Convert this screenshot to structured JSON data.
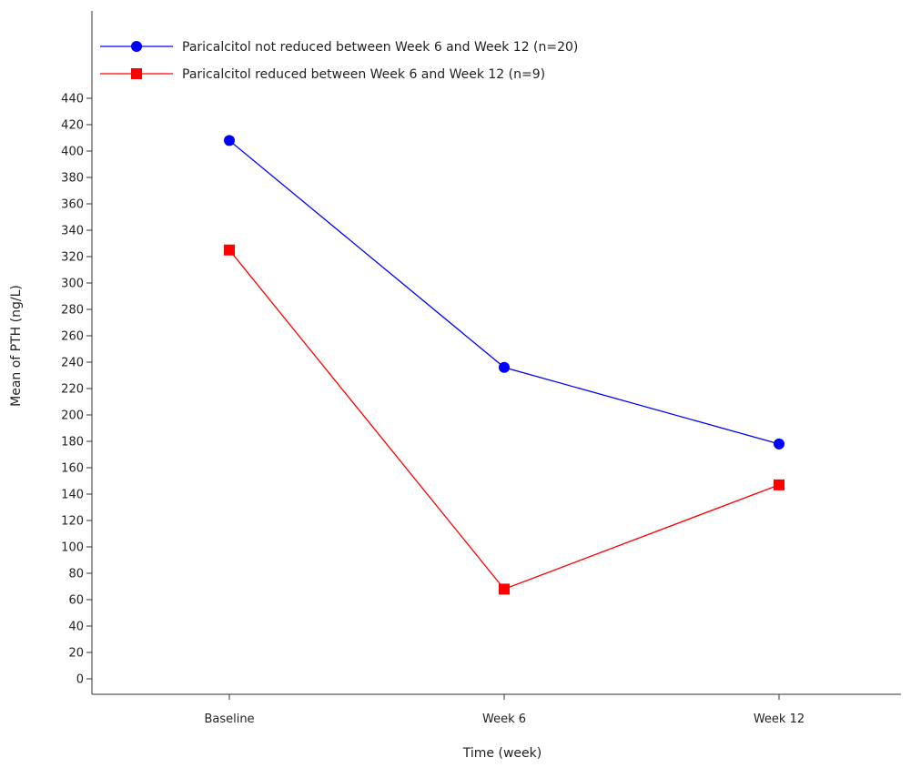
{
  "chart_data": {
    "type": "line",
    "categories": [
      "Baseline",
      "Week 6",
      "Week 12"
    ],
    "xlabel": "Time (week)",
    "ylabel": "Mean of PTH (ng/L)",
    "ylim": [
      0,
      440
    ],
    "yticks": [
      0,
      20,
      40,
      60,
      80,
      100,
      120,
      140,
      160,
      180,
      200,
      220,
      240,
      260,
      280,
      300,
      320,
      340,
      360,
      380,
      400,
      420,
      440
    ],
    "grid": false,
    "legend_position": "top-left",
    "series": [
      {
        "name": "Paricalcitol not reduced between Week 6 and Week 12 (n=20)",
        "values": [
          408,
          236,
          178
        ],
        "color": "#0000ff",
        "marker": "circle"
      },
      {
        "name": "Paricalcitol reduced between Week 6 and Week 12 (n=9)",
        "values": [
          325,
          68,
          147
        ],
        "color": "#ff0000",
        "marker": "square"
      }
    ]
  }
}
